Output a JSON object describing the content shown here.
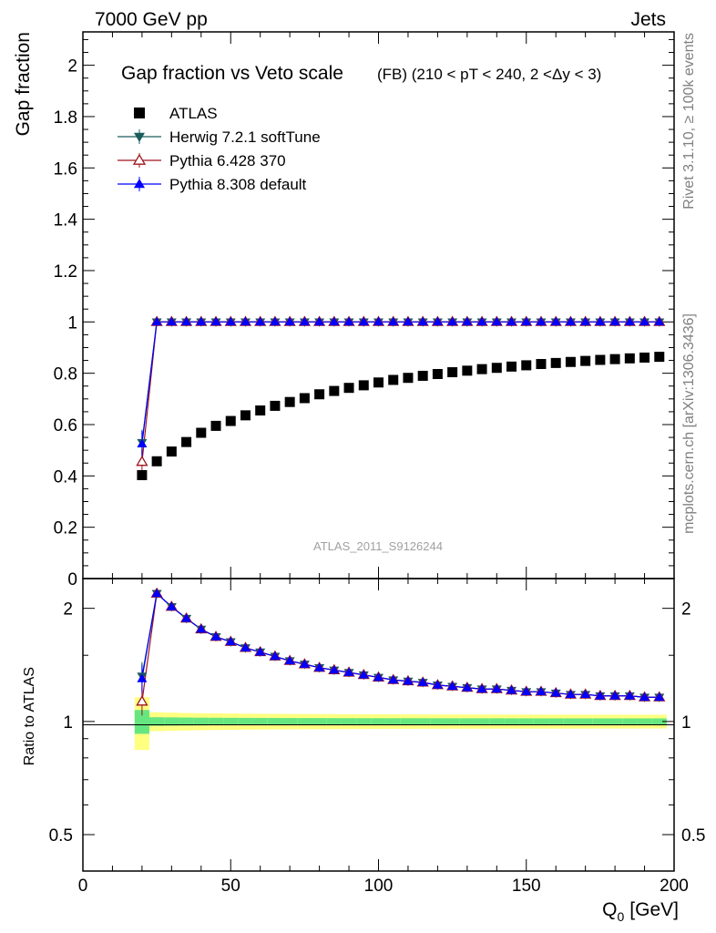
{
  "header": {
    "left": "7000 GeV pp",
    "right": "Jets"
  },
  "side_labels": {
    "rivet": "Rivet 3.1.10, ≥ 100k events",
    "mcplots": "mcplots.cern.ch [arXiv:1306.3436]"
  },
  "chart_data": [
    {
      "type": "scatter",
      "title": "Gap fraction vs Veto scale",
      "subtitle": "(FB) (210 < pT < 240, 2 <Δy < 3)",
      "ylabel": "Gap fraction",
      "xlabel": "",
      "xlim": [
        0,
        200
      ],
      "ylim": [
        0,
        2.13
      ],
      "log_y": false,
      "watermark": "ATLAS_2011_S9126244",
      "y_ticks": [
        "0",
        "0.2",
        "0.4",
        "0.6",
        "0.8",
        "1",
        "1.2",
        "1.4",
        "1.6",
        "1.8",
        "2"
      ],
      "legend_position": "top-left",
      "x": [
        20,
        25,
        30,
        35,
        40,
        45,
        50,
        55,
        60,
        65,
        70,
        75,
        80,
        85,
        90,
        95,
        100,
        105,
        110,
        115,
        120,
        125,
        130,
        135,
        140,
        145,
        150,
        155,
        160,
        165,
        170,
        175,
        180,
        185,
        190,
        195
      ],
      "series": [
        {
          "name": "ATLAS",
          "marker": "square",
          "color": "#000000",
          "values": [
            0.403,
            0.457,
            0.495,
            0.532,
            0.568,
            0.595,
            0.614,
            0.636,
            0.655,
            0.673,
            0.688,
            0.703,
            0.718,
            0.731,
            0.743,
            0.753,
            0.764,
            0.774,
            0.782,
            0.79,
            0.797,
            0.804,
            0.81,
            0.816,
            0.821,
            0.826,
            0.831,
            0.836,
            0.84,
            0.844,
            0.848,
            0.852,
            0.855,
            0.858,
            0.861,
            0.864
          ]
        },
        {
          "name": "Herwig 7.2.1 softTune",
          "marker": "triangle-down",
          "color": "#1a5c5c",
          "values": [
            0.53,
            1,
            1,
            1,
            1,
            1,
            1,
            1,
            1,
            1,
            1,
            1,
            1,
            1,
            1,
            1,
            1,
            1,
            1,
            1,
            1,
            1,
            1,
            1,
            1,
            1,
            1,
            1,
            1,
            1,
            1,
            1,
            1,
            1,
            1,
            1
          ]
        },
        {
          "name": "Pythia 6.428 370",
          "marker": "triangle-open",
          "color": "#a0141e",
          "values": [
            0.455,
            1,
            1,
            1,
            1,
            1,
            1,
            1,
            1,
            1,
            1,
            1,
            1,
            1,
            1,
            1,
            1,
            1,
            1,
            1,
            1,
            1,
            1,
            1,
            1,
            1,
            1,
            1,
            1,
            1,
            1,
            1,
            1,
            1,
            1,
            1
          ]
        },
        {
          "name": "Pythia 8.308 default",
          "marker": "triangle-up",
          "color": "#0000ff",
          "values": [
            0.525,
            1,
            1,
            1,
            1,
            1,
            1,
            1,
            1,
            1,
            1,
            1,
            1,
            1,
            1,
            1,
            1,
            1,
            1,
            1,
            1,
            1,
            1,
            1,
            1,
            1,
            1,
            1,
            1,
            1,
            1,
            1,
            1,
            1,
            1,
            1
          ]
        }
      ]
    },
    {
      "type": "scatter",
      "title": "",
      "ylabel": "Ratio to ATLAS",
      "xlabel": "Q",
      "xlabel_subscript": "0",
      "xlabel_unit": "[GeV]",
      "xlim": [
        0,
        200
      ],
      "ylim": [
        0.4,
        2.4
      ],
      "log_y": true,
      "y_ticks": [
        "0.5",
        "1",
        "2"
      ],
      "x_ticks": [
        "0",
        "50",
        "100",
        "150",
        "200"
      ],
      "band_colors": [
        "#ffff80",
        "#66e680"
      ],
      "x": [
        20,
        25,
        30,
        35,
        40,
        45,
        50,
        55,
        60,
        65,
        70,
        75,
        80,
        85,
        90,
        95,
        100,
        105,
        110,
        115,
        120,
        125,
        130,
        135,
        140,
        145,
        150,
        155,
        160,
        165,
        170,
        175,
        180,
        185,
        190,
        195
      ],
      "series": [
        {
          "name": "Herwig 7.2.1 softTune",
          "marker": "triangle-down",
          "color": "#1a5c5c",
          "values": [
            1.32,
            2.19,
            2.02,
            1.88,
            1.76,
            1.68,
            1.63,
            1.57,
            1.53,
            1.49,
            1.45,
            1.42,
            1.39,
            1.37,
            1.35,
            1.33,
            1.31,
            1.29,
            1.28,
            1.27,
            1.25,
            1.24,
            1.23,
            1.22,
            1.22,
            1.21,
            1.2,
            1.2,
            1.19,
            1.18,
            1.18,
            1.17,
            1.17,
            1.17,
            1.16,
            1.16
          ]
        },
        {
          "name": "Pythia 6.428 370",
          "marker": "triangle-open",
          "color": "#a0141e",
          "values": [
            1.13,
            2.19,
            2.02,
            1.88,
            1.76,
            1.68,
            1.63,
            1.57,
            1.53,
            1.49,
            1.45,
            1.42,
            1.39,
            1.37,
            1.35,
            1.33,
            1.31,
            1.29,
            1.28,
            1.27,
            1.25,
            1.24,
            1.23,
            1.22,
            1.22,
            1.21,
            1.2,
            1.2,
            1.19,
            1.18,
            1.18,
            1.17,
            1.17,
            1.17,
            1.16,
            1.16
          ]
        },
        {
          "name": "Pythia 8.308 default",
          "marker": "triangle-up",
          "color": "#0000ff",
          "values": [
            1.3,
            2.19,
            2.02,
            1.88,
            1.76,
            1.68,
            1.63,
            1.57,
            1.53,
            1.49,
            1.45,
            1.42,
            1.39,
            1.37,
            1.35,
            1.33,
            1.31,
            1.29,
            1.28,
            1.27,
            1.25,
            1.24,
            1.23,
            1.22,
            1.22,
            1.21,
            1.2,
            1.2,
            1.19,
            1.18,
            1.18,
            1.17,
            1.17,
            1.17,
            1.16,
            1.16
          ]
        }
      ]
    }
  ]
}
